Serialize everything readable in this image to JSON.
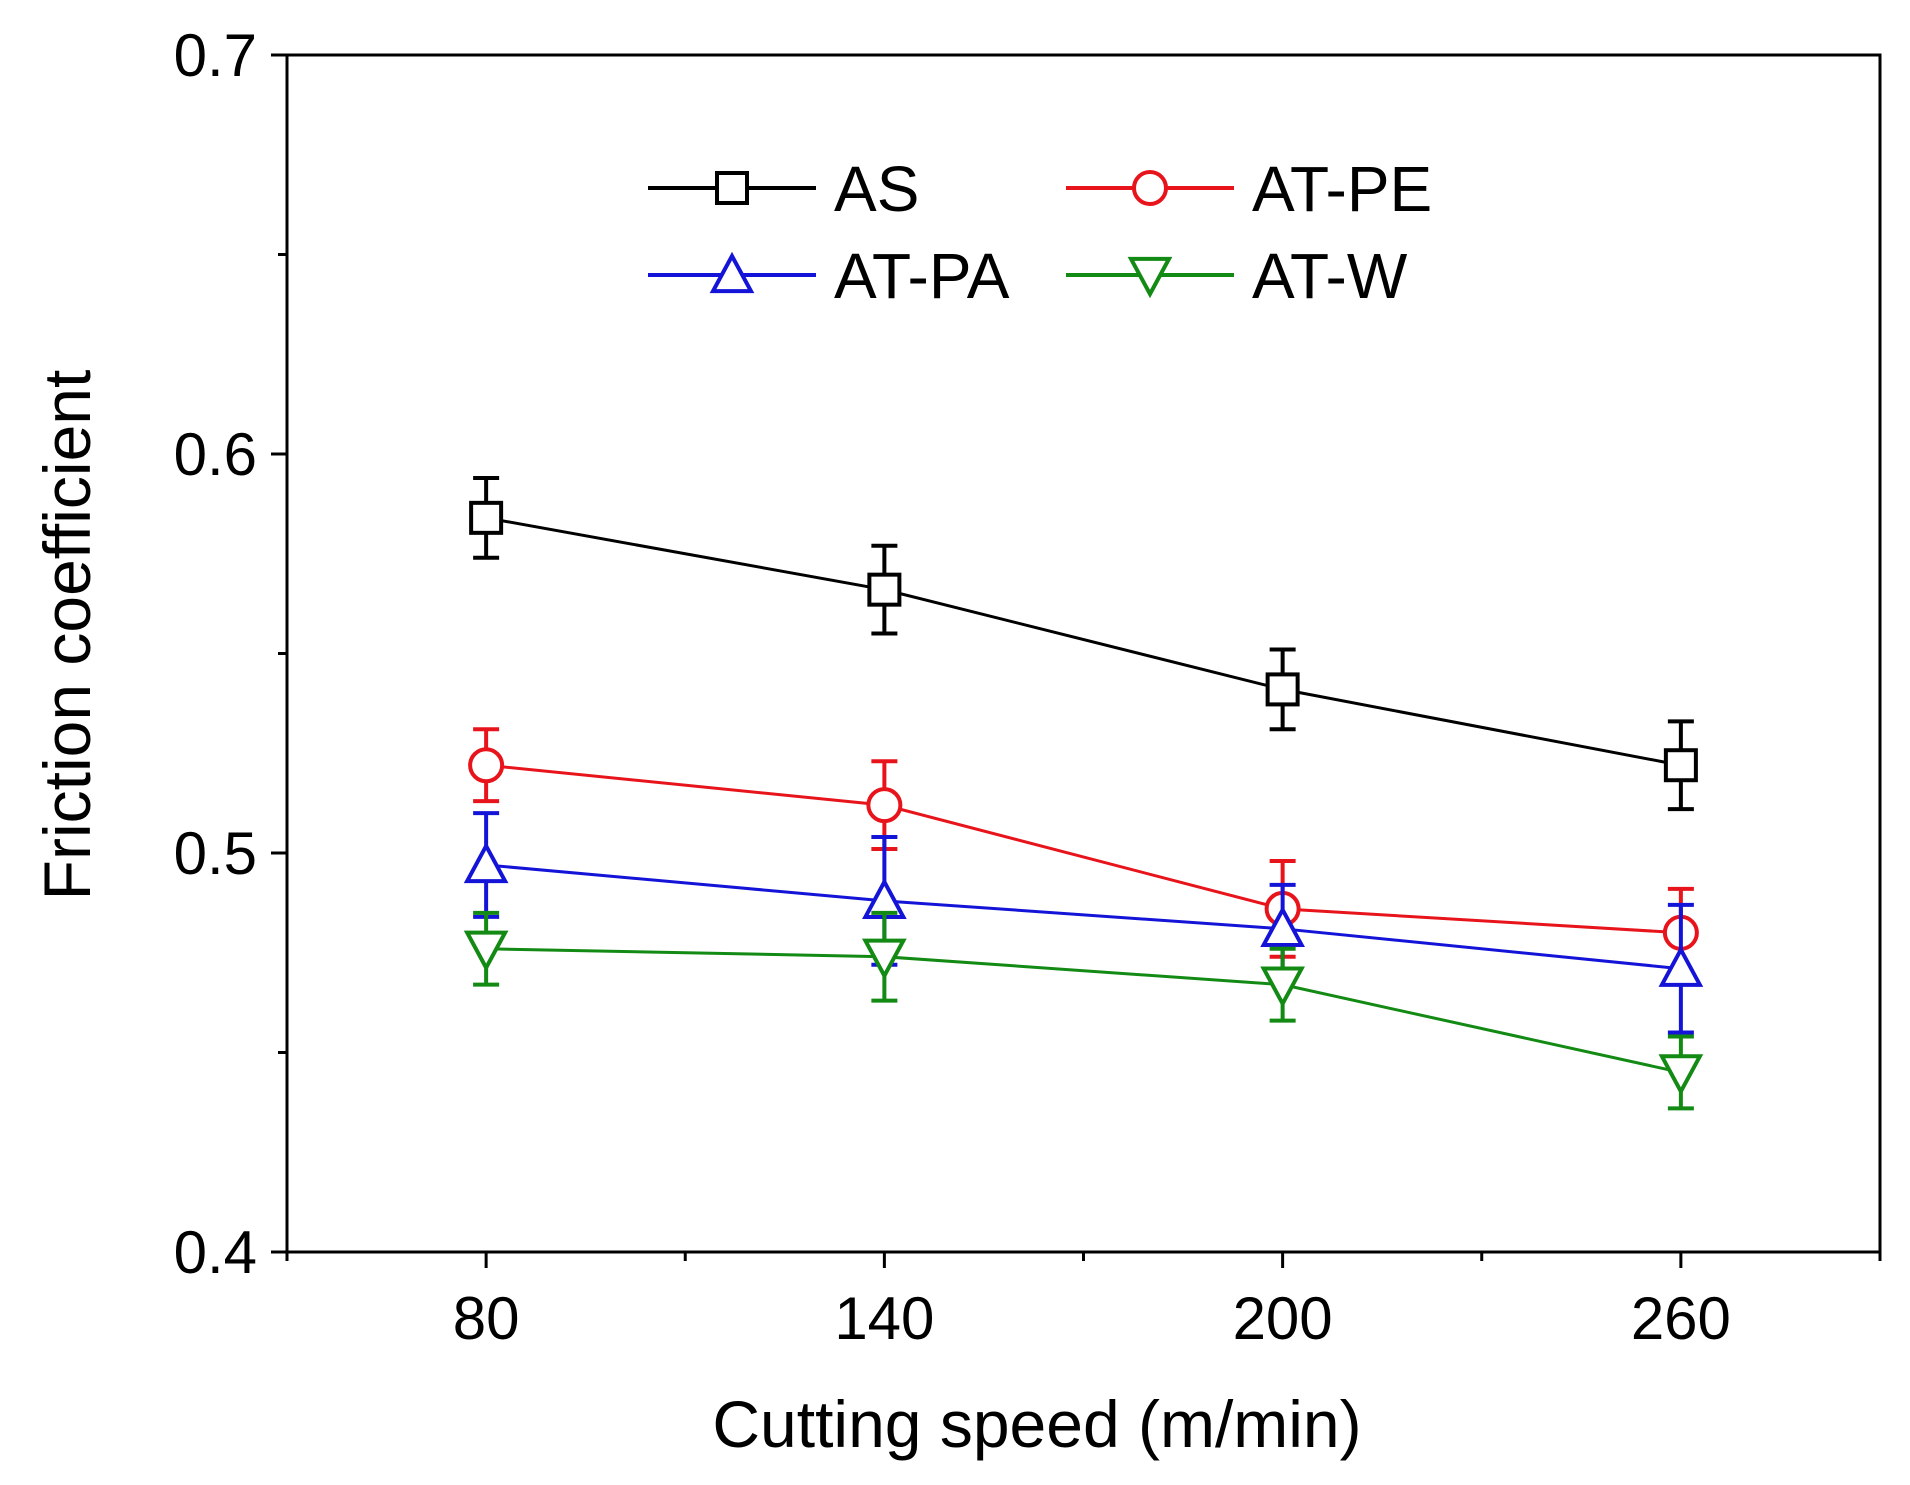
{
  "chart_data": {
    "type": "line",
    "xlabel": "Cutting speed (m/min)",
    "ylabel": "Friction coefficient",
    "x": [
      80,
      140,
      200,
      260
    ],
    "x_ticks": [
      "80",
      "140",
      "200",
      "260"
    ],
    "xlim": [
      50,
      290
    ],
    "ylim": [
      0.4,
      0.7
    ],
    "y_ticks": [
      "0.4",
      "0.5",
      "0.6",
      "0.7"
    ],
    "legend_position": "top-center",
    "grid": false,
    "series": [
      {
        "name": "AS",
        "color": "#000000",
        "marker": "square",
        "values": [
          0.584,
          0.566,
          0.541,
          0.522
        ],
        "errors": [
          0.01,
          0.011,
          0.01,
          0.011
        ]
      },
      {
        "name": "AT-PE",
        "color": "#e8141b",
        "marker": "circle",
        "values": [
          0.522,
          0.512,
          0.486,
          0.48
        ],
        "errors": [
          0.009,
          0.011,
          0.012,
          0.011
        ]
      },
      {
        "name": "AT-PA",
        "color": "#1414d8",
        "marker": "triangle-up",
        "values": [
          0.497,
          0.488,
          0.481,
          0.471
        ],
        "errors": [
          0.013,
          0.016,
          0.011,
          0.016
        ]
      },
      {
        "name": "AT-W",
        "color": "#138a13",
        "marker": "triangle-down",
        "values": [
          0.476,
          0.474,
          0.467,
          0.445
        ],
        "errors": [
          0.009,
          0.011,
          0.009,
          0.009
        ]
      }
    ]
  }
}
